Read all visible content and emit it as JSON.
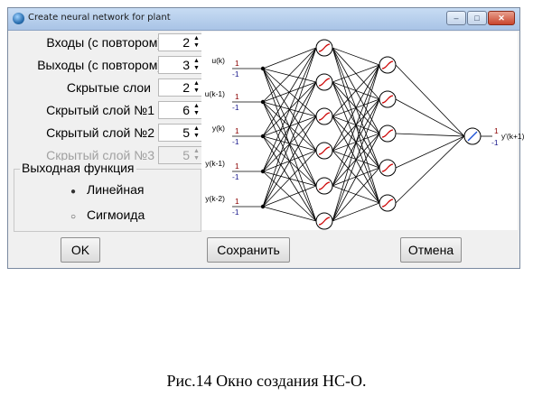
{
  "window": {
    "title": "Create neural network for plant",
    "controls": {
      "minimize": "–",
      "maximize": "□",
      "close": "✕"
    }
  },
  "fields": [
    {
      "label": "Входы (с повтором)",
      "value": "2",
      "enabled": true
    },
    {
      "label": "Выходы (с повтором)",
      "value": "3",
      "enabled": true
    },
    {
      "label": "Скрытые слои",
      "value": "2",
      "enabled": true
    },
    {
      "label": "Скрытый слой №1",
      "value": "6",
      "enabled": true
    },
    {
      "label": "Скрытый слой №2",
      "value": "5",
      "enabled": true
    },
    {
      "label": "Скрытый слой №3",
      "value": "5",
      "enabled": false
    }
  ],
  "output_function": {
    "title": "Выходная функция",
    "options": [
      {
        "label": "Линейная",
        "selected": true
      },
      {
        "label": "Сигмоида",
        "selected": false
      }
    ]
  },
  "network": {
    "inputs": [
      "u(k)",
      "u(k-1)",
      "y(k)",
      "y(k-1)",
      "y(k-2)"
    ],
    "hidden1_count": 6,
    "hidden2_count": 5,
    "range_upper": "1",
    "range_lower": "-1",
    "output_label": "y'(k+1)"
  },
  "buttons": {
    "ok": "OK",
    "save": "Сохранить",
    "cancel": "Отмена"
  },
  "caption": "Рис.14 Окно создания НС-О.",
  "colors": {
    "range_upper": "#8b0000",
    "range_lower": "#1a1a8c",
    "neuron_sigmoid": "#cc0000",
    "neuron_linear": "#1a4fd6"
  }
}
